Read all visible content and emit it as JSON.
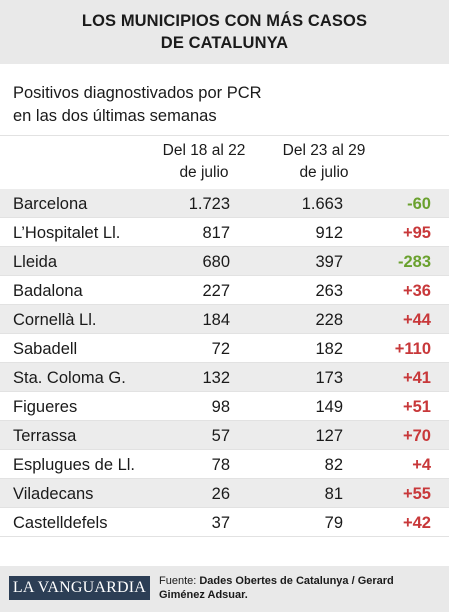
{
  "header": {
    "title_line1": "LOS MUNICIPIOS CON MÁS CASOS",
    "title_line2": "DE CATALUNYA"
  },
  "subtitle": {
    "line1": "Positivos diagnostivados por PCR",
    "line2": "en las dos últimas semanas"
  },
  "columns": [
    {
      "line1": "Del 18 al 22",
      "line2": "de julio"
    },
    {
      "line1": "Del 23 al 29",
      "line2": "de julio"
    }
  ],
  "colors": {
    "negative": "#6aa12e",
    "positive": "#c8383a",
    "band_even": "#ececec",
    "band_odd": "#ffffff"
  },
  "chart_data": {
    "type": "table",
    "title": "LOS MUNICIPIOS CON MÁS CASOS DE CATALUNYA",
    "subtitle": "Positivos diagnostivados por PCR en las dos últimas semanas",
    "columns": [
      "Del 18 al 22 de julio",
      "Del 23 al 29 de julio",
      ""
    ],
    "rows": [
      {
        "name": "Barcelona",
        "week1": "1.723",
        "week2": "1.663",
        "diff": "-60"
      },
      {
        "name": "L’Hospitalet Ll.",
        "week1": "817",
        "week2": "912",
        "diff": "+95"
      },
      {
        "name": "Lleida",
        "week1": "680",
        "week2": "397",
        "diff": "-283"
      },
      {
        "name": "Badalona",
        "week1": "227",
        "week2": "263",
        "diff": "+36"
      },
      {
        "name": "Cornellà Ll.",
        "week1": "184",
        "week2": "228",
        "diff": "+44"
      },
      {
        "name": "Sabadell",
        "week1": "72",
        "week2": "182",
        "diff": "+110"
      },
      {
        "name": "Sta. Coloma G.",
        "week1": "132",
        "week2": "173",
        "diff": "+41"
      },
      {
        "name": "Figueres",
        "week1": "98",
        "week2": "149",
        "diff": "+51"
      },
      {
        "name": "Terrassa",
        "week1": "57",
        "week2": "127",
        "diff": "+70"
      },
      {
        "name": "Esplugues de Ll.",
        "week1": "78",
        "week2": "82",
        "diff": "+4"
      },
      {
        "name": "Viladecans",
        "week1": "26",
        "week2": "81",
        "diff": "+55"
      },
      {
        "name": "Castelldefels",
        "week1": "37",
        "week2": "79",
        "diff": "+42"
      }
    ]
  },
  "footer": {
    "logo_text": "LA VANGUARDIA",
    "credit_label": "Fuente: ",
    "credit_line1_bold": "Dades Obertes de Catalunya / Gerard",
    "credit_line2_bold": "Giménez Adsuar."
  }
}
